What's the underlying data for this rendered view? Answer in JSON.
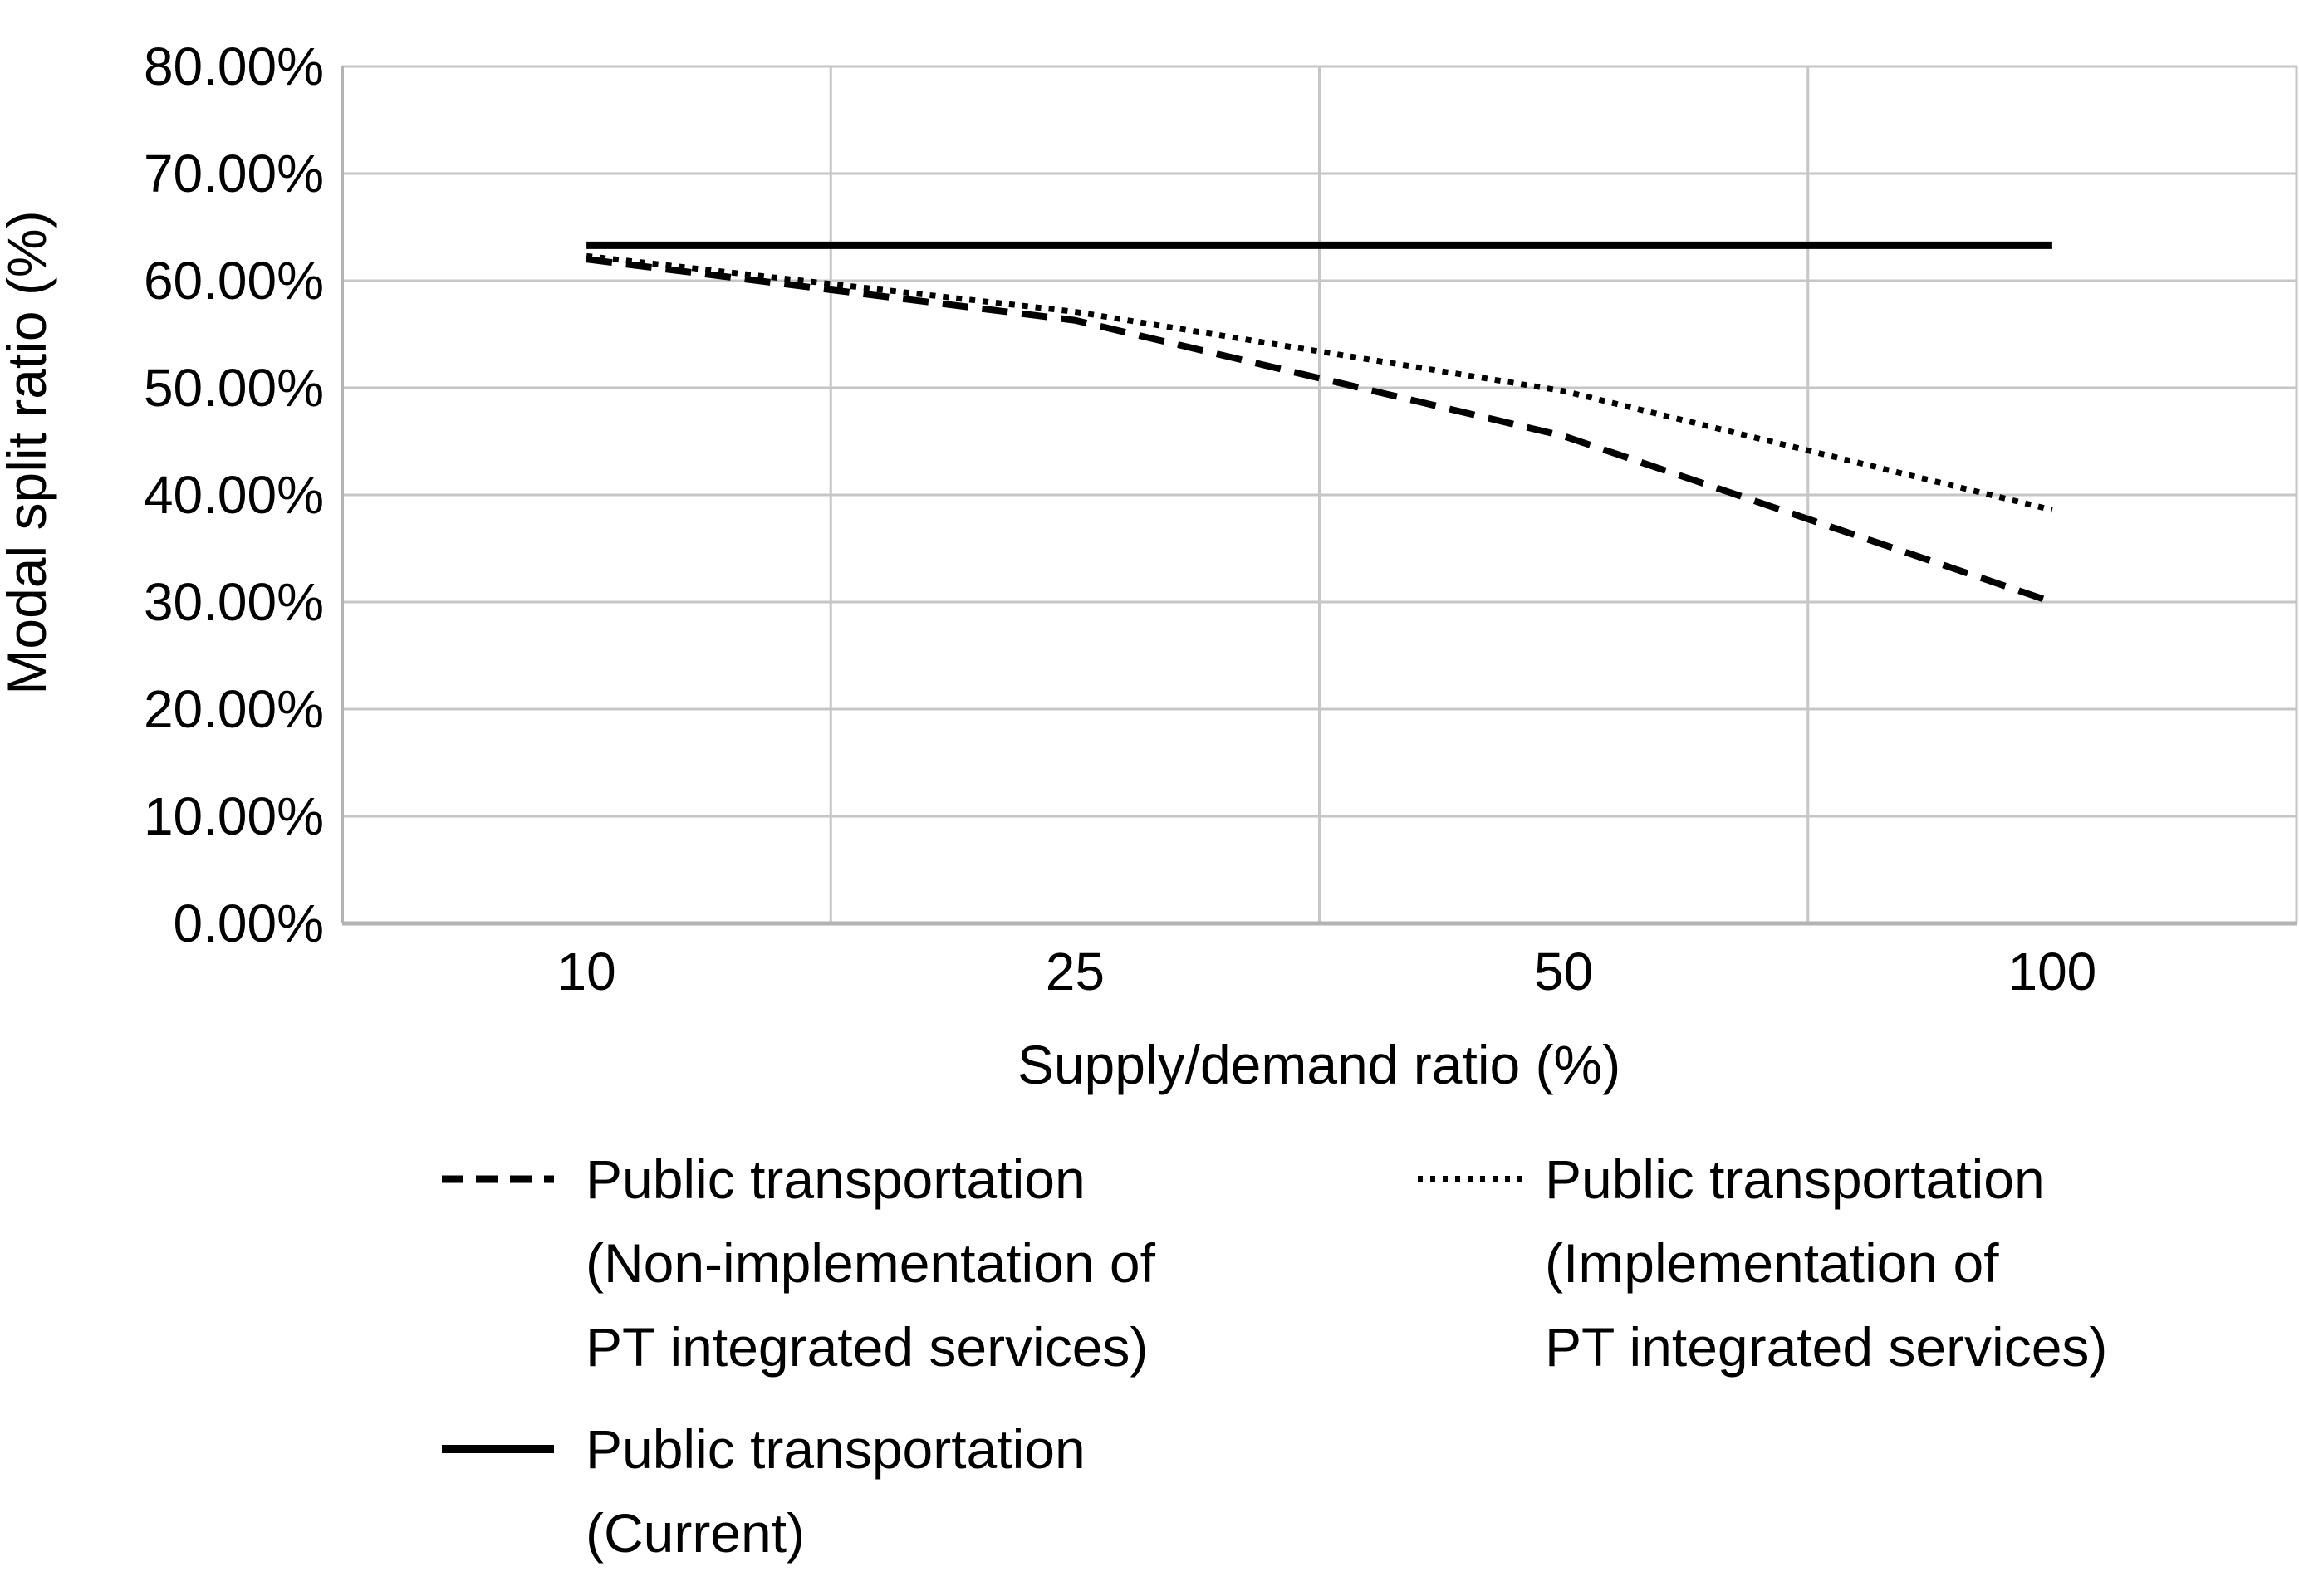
{
  "chart_data": {
    "type": "line",
    "categories": [
      "10",
      "25",
      "50",
      "100"
    ],
    "x_axis_title": "Supply/demand ratio (%)",
    "y_axis_title": "Modal split ratio (%)",
    "ylim": [
      0,
      80
    ],
    "y_tick_step": 10,
    "y_ticks": [
      {
        "value": 0,
        "label": "0.00%"
      },
      {
        "value": 10,
        "label": "10.00%"
      },
      {
        "value": 20,
        "label": "20.00%"
      },
      {
        "value": 30,
        "label": "30.00%"
      },
      {
        "value": 40,
        "label": "40.00%"
      },
      {
        "value": 50,
        "label": "50.00%"
      },
      {
        "value": 60,
        "label": "60.00%"
      },
      {
        "value": 70,
        "label": "70.00%"
      },
      {
        "value": 80,
        "label": "80.00%"
      }
    ],
    "grid": true,
    "legend_position": "bottom",
    "series": [
      {
        "name": "Public transportation (Non-implementation of PT integrated services)",
        "legend_lines": [
          "Public transportation",
          "(Non-implementation of",
          "PT integrated services)"
        ],
        "style": "dashed",
        "color": "#000000",
        "values": [
          62.0,
          56.3,
          45.5,
          30.0
        ]
      },
      {
        "name": "Public transportation (Implementation of PT integrated services)",
        "legend_lines": [
          "Public transportation",
          "(Implementation of",
          "PT integrated services)"
        ],
        "style": "dotted",
        "color": "#000000",
        "values": [
          62.3,
          57.1,
          49.7,
          38.6
        ]
      },
      {
        "name": "Public transportation (Current)",
        "legend_lines": [
          "Public transportation",
          "(Current)"
        ],
        "style": "solid",
        "color": "#000000",
        "values": [
          63.3,
          63.3,
          63.3,
          63.3
        ]
      }
    ]
  },
  "colors": {
    "gridline": "#c6c6c6",
    "axis_border": "#b3b3b3",
    "series": "#000000",
    "background": "#ffffff",
    "text": "#000000"
  }
}
